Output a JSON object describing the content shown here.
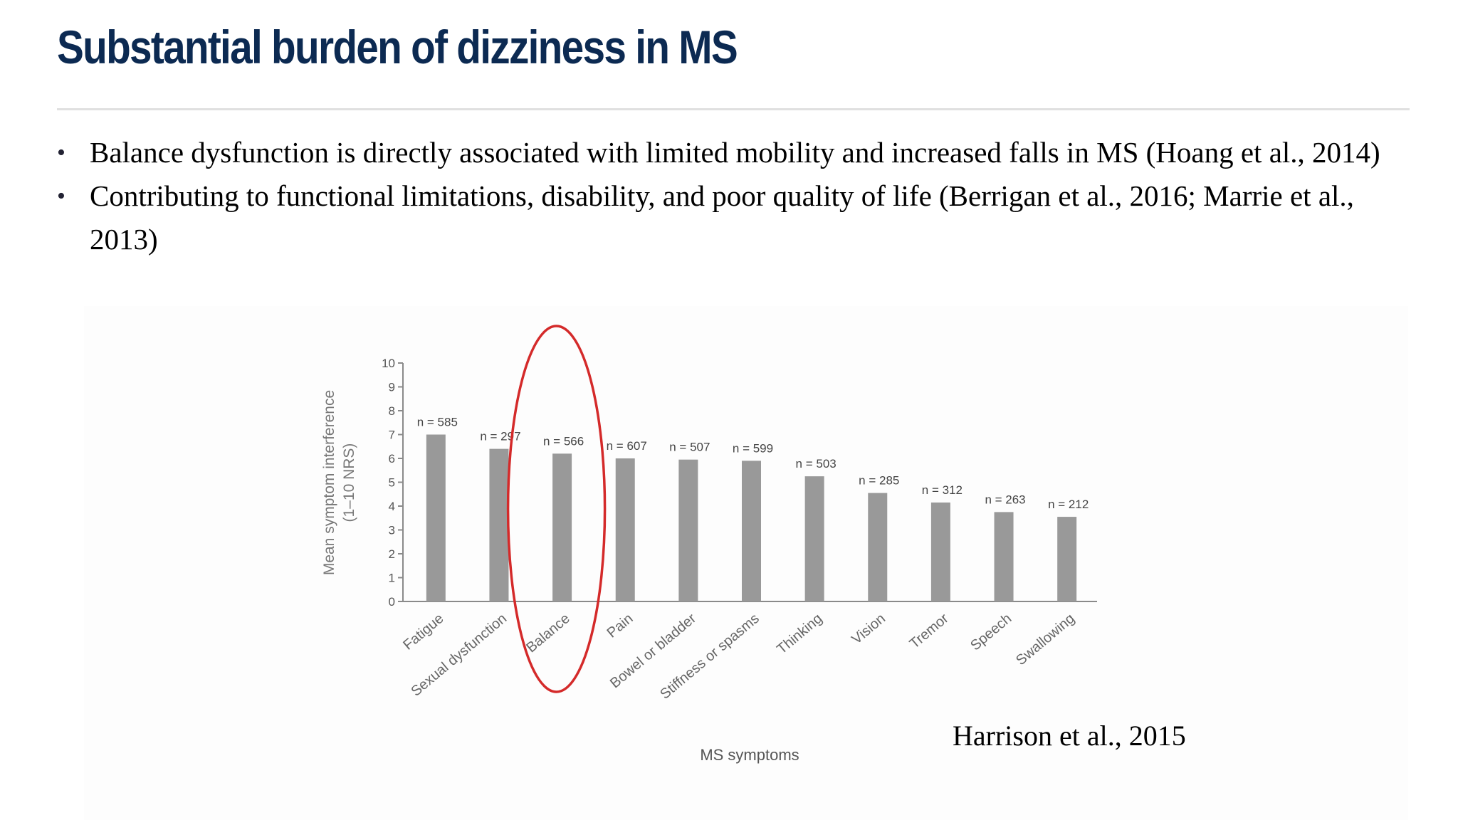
{
  "slide": {
    "title": "Substantial burden of dizziness in MS",
    "bullets": [
      "Balance dysfunction is directly associated with limited mobility and increased falls in MS (Hoang et al., 2014)",
      "Contributing to functional limitations, disability, and poor quality of life (Berrigan et al., 2016; Marrie et al., 2013)"
    ],
    "bullet_symbol": "•",
    "citation": "Harrison et al., 2015",
    "colors": {
      "title": "#0c2a52",
      "bar": "#999999",
      "highlight": "#d42a2a",
      "axis": "#8a8a8a"
    }
  },
  "chart_data": {
    "type": "bar",
    "categories": [
      "Fatigue",
      "Sexual dysfunction",
      "Balance",
      "Pain",
      "Bowel or bladder",
      "Stiffness or spasms",
      "Thinking",
      "Vision",
      "Tremor",
      "Speech",
      "Swallowing"
    ],
    "values": [
      7.0,
      6.4,
      6.2,
      6.0,
      5.95,
      5.9,
      5.25,
      4.55,
      4.15,
      3.75,
      3.55
    ],
    "data_labels": [
      "n = 585",
      "n = 297",
      "n = 566",
      "n = 607",
      "n = 507",
      "n = 599",
      "n = 503",
      "n = 285",
      "n = 312",
      "n = 263",
      "n = 212"
    ],
    "xlabel": "MS symptoms",
    "ylabel_lines": [
      "Mean symptom interference",
      "(1–10 NRS)"
    ],
    "ylim": [
      0,
      10
    ],
    "yticks": [
      0,
      1,
      2,
      3,
      4,
      5,
      6,
      7,
      8,
      9,
      10
    ],
    "grid": false,
    "legend": "none",
    "highlight_category": "Balance"
  }
}
